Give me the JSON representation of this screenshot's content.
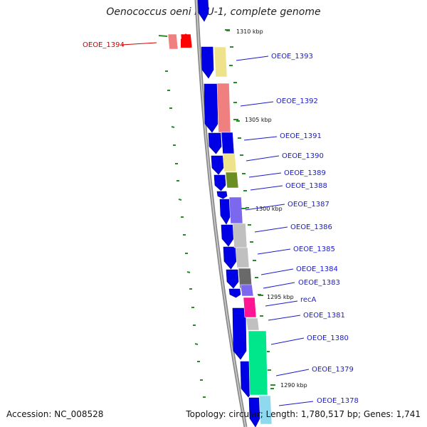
{
  "title": "Oenococcus oeni PSU-1, complete genome",
  "footer": {
    "accession": "Accession: NC_008528",
    "summary": "Topology: circular; Length: 1,780,517 bp; Genes: 1,741"
  },
  "kbp_labels": [
    "1310 kbp",
    "1305 kbp",
    "1300 kbp",
    "1295 kbp",
    "1290 kbp"
  ],
  "genes": [
    {
      "label": "OEOE_1394",
      "color": "#d40000"
    },
    {
      "label": "OEOE_1393",
      "color": "#1a1acd"
    },
    {
      "label": "OEOE_1392",
      "color": "#1a1acd"
    },
    {
      "label": "OEOE_1391",
      "color": "#1a1acd"
    },
    {
      "label": "OEOE_1390",
      "color": "#1a1acd"
    },
    {
      "label": "OEOE_1389",
      "color": "#1a1acd"
    },
    {
      "label": "OEOE_1388",
      "color": "#1a1acd"
    },
    {
      "label": "OEOE_1387",
      "color": "#1a1acd"
    },
    {
      "label": "OEOE_1386",
      "color": "#1a1acd"
    },
    {
      "label": "OEOE_1385",
      "color": "#1a1acd"
    },
    {
      "label": "OEOE_1384",
      "color": "#1a1acd"
    },
    {
      "label": "OEOE_1383",
      "color": "#1a1acd"
    },
    {
      "label": "recA",
      "color": "#1a1acd"
    },
    {
      "label": "OEOE_1381",
      "color": "#1a1acd"
    },
    {
      "label": "OEOE_1380",
      "color": "#1a1acd"
    },
    {
      "label": "OEOE_1379",
      "color": "#1a1acd"
    },
    {
      "label": "OEOE_1378",
      "color": "#1a1acd"
    }
  ],
  "colors": {
    "cds_blue": "#0000e6",
    "backbone": "#8a8a8a",
    "tick_green": "#2a8a2a",
    "highlight_red": "#ff0000",
    "pink": "#f08080",
    "khaki": "#eee28a",
    "olive": "#6b8e23",
    "slate": "#7b68ee",
    "silver": "#c0c0c0",
    "dim_gray": "#696969",
    "magenta": "#ff1493",
    "spring_green": "#00e68a"
  }
}
